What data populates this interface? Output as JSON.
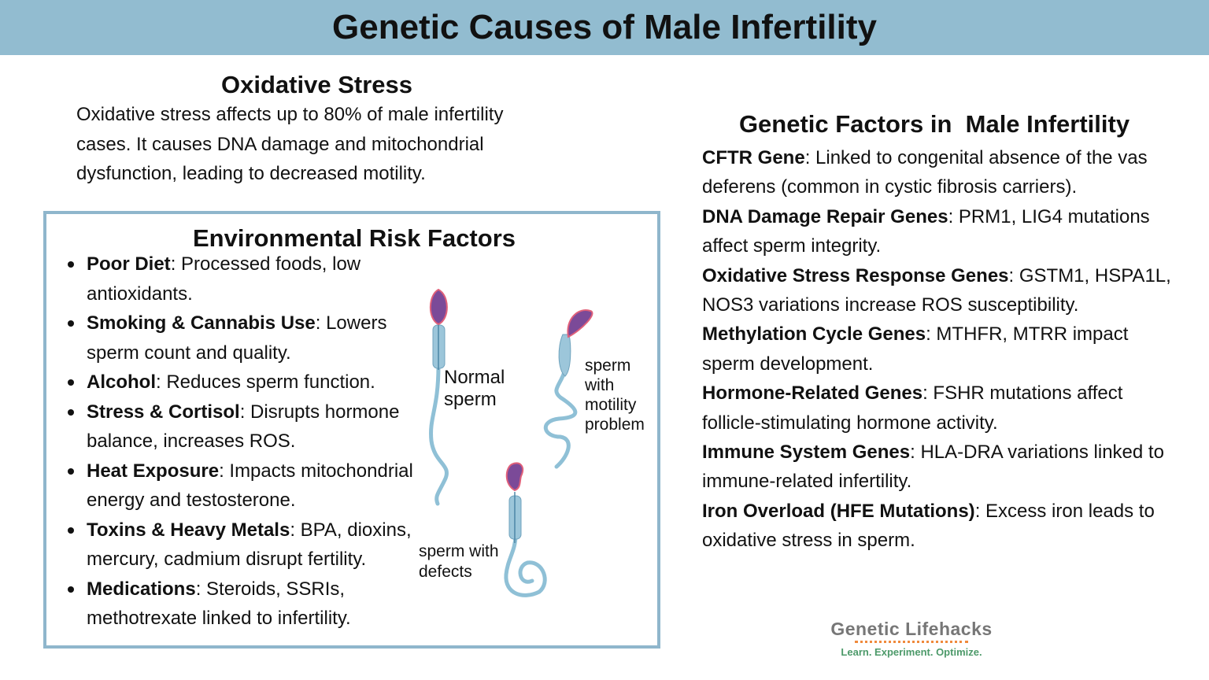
{
  "header": {
    "title": "Genetic Causes of Male Infertility"
  },
  "oxidative_stress": {
    "title": "Oxidative Stress",
    "text": "Oxidative stress affects up to 80% of male infertility cases. It causes DNA damage and mitochondrial dysfunction, leading to decreased motility."
  },
  "environmental": {
    "title": "Environmental Risk Factors",
    "items": [
      {
        "term": "Poor Diet",
        "desc": ": Processed foods, low antioxidants."
      },
      {
        "term": "Smoking & Cannabis Use",
        "desc": ": Lowers sperm count and quality."
      },
      {
        "term": "Alcohol",
        "desc": ": Reduces sperm function."
      },
      {
        "term": "Stress & Cortisol",
        "desc": ": Disrupts hormone balance, increases ROS."
      },
      {
        "term": "Heat Exposure",
        "desc": ": Impacts mitochondrial energy and testosterone."
      },
      {
        "term": "Toxins & Heavy Metals",
        "desc": ": BPA, dioxins, mercury, cadmium disrupt fertility."
      },
      {
        "term": "Medications",
        "desc": ": Steroids, SSRIs, methotrexate linked to infertility."
      }
    ]
  },
  "sperm_illustration": {
    "normal_label": [
      "Normal",
      "sperm"
    ],
    "motility_label": [
      "sperm",
      "with",
      "motility",
      "problem"
    ],
    "defects_label": [
      "sperm with",
      "defects"
    ],
    "colors": {
      "head": "#7b4a98",
      "tail": "#8fc0d6",
      "acrosome": "#e0607a"
    }
  },
  "genetic_factors": {
    "title": "Genetic Factors in  Male Infertility",
    "items": [
      {
        "term": "CFTR Gene",
        "desc": ": Linked to congenital absence of the vas deferens (common in cystic fibrosis carriers)."
      },
      {
        "term": "DNA Damage Repair Genes",
        "desc": ": PRM1, LIG4 mutations affect sperm integrity."
      },
      {
        "term": "Oxidative Stress Response Genes",
        "desc": ": GSTM1, HSPA1L, NOS3 variations increase ROS susceptibility."
      },
      {
        "term": "Methylation Cycle Genes",
        "desc": ": MTHFR, MTRR impact sperm development."
      },
      {
        "term": "Hormone-Related Genes",
        "desc": ": FSHR mutations affect follicle-stimulating hormone activity."
      },
      {
        "term": "Immune System Genes",
        "desc": ": HLA-DRA variations linked to immune-related infertility."
      },
      {
        "term": "Iron Overload (HFE Mutations)",
        "desc": ": Excess iron leads to oxidative stress in sperm."
      }
    ]
  },
  "logo": {
    "name": "Genetic Lifehacks",
    "tagline": "Learn. Experiment. Optimize."
  },
  "colors": {
    "header_bg": "#92bcd0",
    "box_border": "#8fb6cc"
  }
}
